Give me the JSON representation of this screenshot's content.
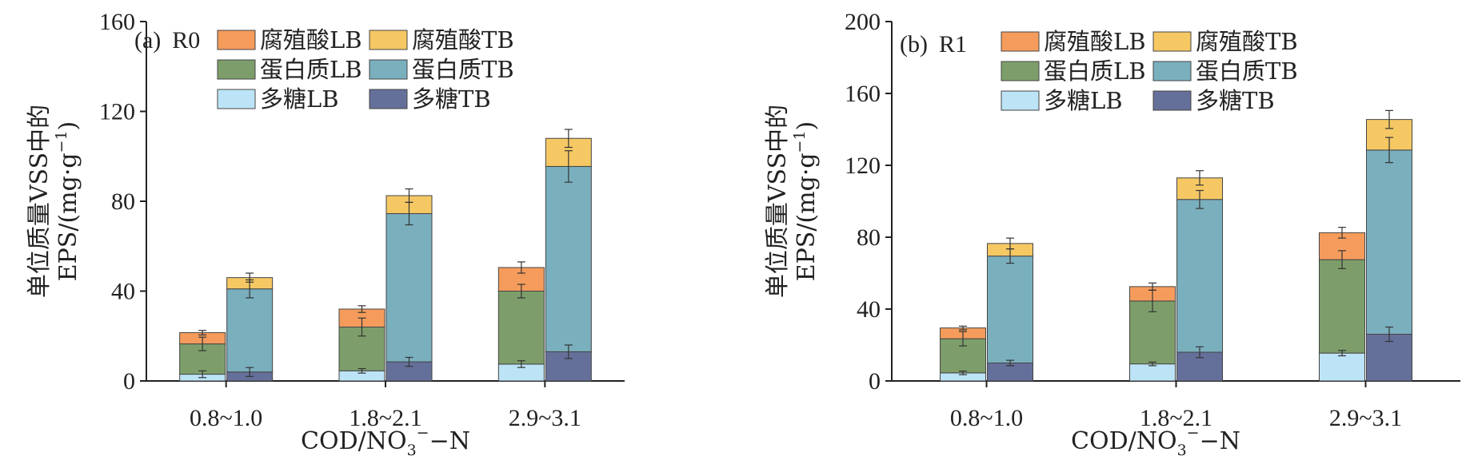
{
  "chart_data": [
    {
      "type": "bar",
      "panel_label": "(a)",
      "panel_name": "R0",
      "categories": [
        "0.8~1.0",
        "1.8~2.1",
        "2.9~3.1"
      ],
      "ylim": [
        0,
        160
      ],
      "yticks": [
        0,
        40,
        80,
        120,
        160
      ],
      "ylabel_line1": "单位质量VSS中的",
      "ylabel_line2": "EPS/(mg·g",
      "ylabel_sup": "−1",
      "ylabel_close": ")",
      "xlabel_main": "COD/NO",
      "xlabel_sub": "3",
      "xlabel_sup": "−",
      "xlabel_tail": "−N",
      "grid": false,
      "legend_position": "top",
      "stacks": [
        {
          "name": "LB",
          "series": [
            {
              "name": "多糖LB",
              "color": "#bde3f6",
              "values": [
                3,
                4.5,
                7.5
              ],
              "errors": [
                1.5,
                1,
                1.5
              ]
            },
            {
              "name": "蛋白质LB",
              "color": "#7d9e6b",
              "values": [
                13.5,
                19.5,
                32.5
              ],
              "errors": [
                3,
                4,
                3
              ]
            },
            {
              "name": "腐殖酸LB",
              "color": "#f59c5c",
              "values": [
                5,
                8,
                10.5
              ],
              "errors": [
                1,
                1.5,
                2.5
              ]
            }
          ]
        },
        {
          "name": "TB",
          "series": [
            {
              "name": "多糖TB",
              "color": "#65709a",
              "values": [
                4,
                8.5,
                13
              ],
              "errors": [
                2,
                2,
                3
              ]
            },
            {
              "name": "蛋白质TB",
              "color": "#7aafbe",
              "values": [
                37,
                66,
                82.5
              ],
              "errors": [
                4,
                5,
                7
              ]
            },
            {
              "name": "腐殖酸TB",
              "color": "#f5c864",
              "values": [
                5,
                8,
                12.5
              ],
              "errors": [
                2,
                3,
                4
              ]
            }
          ]
        }
      ]
    },
    {
      "type": "bar",
      "panel_label": "(b)",
      "panel_name": "R1",
      "categories": [
        "0.8~1.0",
        "1.8~2.1",
        "2.9~3.1"
      ],
      "ylim": [
        0,
        200
      ],
      "yticks": [
        0,
        40,
        80,
        120,
        160,
        200
      ],
      "ylabel_line1": "单位质量VSS中的",
      "ylabel_line2": "EPS/(mg·g",
      "ylabel_sup": "−1",
      "ylabel_close": ")",
      "xlabel_main": "COD/NO",
      "xlabel_sub": "3",
      "xlabel_sup": "−",
      "xlabel_tail": "−N",
      "grid": false,
      "legend_position": "top",
      "stacks": [
        {
          "name": "LB",
          "series": [
            {
              "name": "多糖LB",
              "color": "#bde3f6",
              "values": [
                4.5,
                9.5,
                15.5
              ],
              "errors": [
                1,
                1,
                1.5
              ]
            },
            {
              "name": "蛋白质LB",
              "color": "#7d9e6b",
              "values": [
                19,
                35,
                52
              ],
              "errors": [
                4,
                6,
                5
              ]
            },
            {
              "name": "腐殖酸LB",
              "color": "#f59c5c",
              "values": [
                6,
                8,
                15
              ],
              "errors": [
                1,
                2,
                3
              ]
            }
          ]
        },
        {
          "name": "TB",
          "series": [
            {
              "name": "多糖TB",
              "color": "#65709a",
              "values": [
                10,
                16,
                26
              ],
              "errors": [
                1.5,
                3,
                4
              ]
            },
            {
              "name": "蛋白质TB",
              "color": "#7aafbe",
              "values": [
                59.5,
                85,
                102.5
              ],
              "errors": [
                4,
                5,
                7
              ]
            },
            {
              "name": "腐殖酸TB",
              "color": "#f5c864",
              "values": [
                7,
                12,
                17
              ],
              "errors": [
                3,
                4,
                5
              ]
            }
          ]
        }
      ]
    }
  ],
  "legend_order": [
    "腐殖酸LB",
    "腐殖酸TB",
    "蛋白质LB",
    "蛋白质TB",
    "多糖LB",
    "多糖TB"
  ]
}
